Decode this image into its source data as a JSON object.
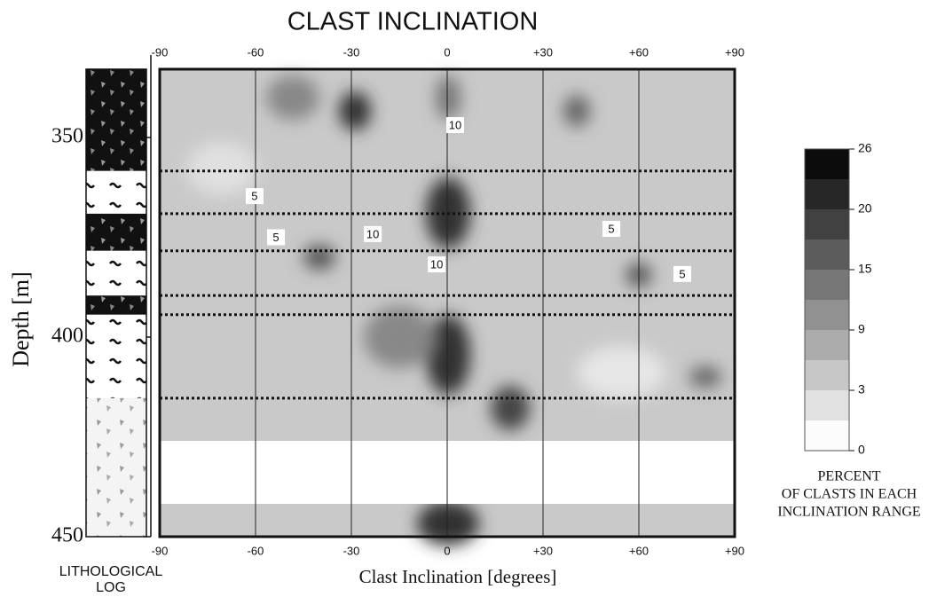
{
  "chart_data": {
    "type": "contour",
    "title": "CLAST INCLINATION",
    "xlabel": "Clast Inclination [degrees]",
    "ylabel": "Depth [m]",
    "xlim": [
      -90,
      90
    ],
    "xticks": [
      -90,
      -60,
      -30,
      0,
      {
        "value": 30,
        "label": "+30"
      },
      {
        "value": 60,
        "label": "+60"
      },
      {
        "value": 90,
        "label": "+90"
      }
    ],
    "ylim": [
      332.9,
      450
    ],
    "yticks": [
      350,
      400,
      450
    ],
    "boundaries": [
      358.4,
      369.1,
      378.4,
      389.6,
      394.4,
      415.3
    ],
    "contour_labels": [
      {
        "value": 10,
        "x": 2.5,
        "y": 346.9
      },
      {
        "value": 5,
        "x": -60.3,
        "y": 364.7
      },
      {
        "value": 5,
        "x": -53.6,
        "y": 375
      },
      {
        "value": 10,
        "x": -23.3,
        "y": 374.2
      },
      {
        "value": 10,
        "x": -3.3,
        "y": 381.8
      },
      {
        "value": 5,
        "x": 51.4,
        "y": 372.9
      },
      {
        "value": 5,
        "x": 73.6,
        "y": 384.2
      }
    ],
    "colorbar": {
      "ticks": [
        0,
        3,
        9,
        15,
        20,
        26
      ],
      "title": [
        "PERCENT",
        "OF CLASTS IN EACH",
        "INCLINATION RANGE"
      ]
    },
    "log_label": [
      "LITHOLOGICAL",
      "LOG"
    ]
  }
}
